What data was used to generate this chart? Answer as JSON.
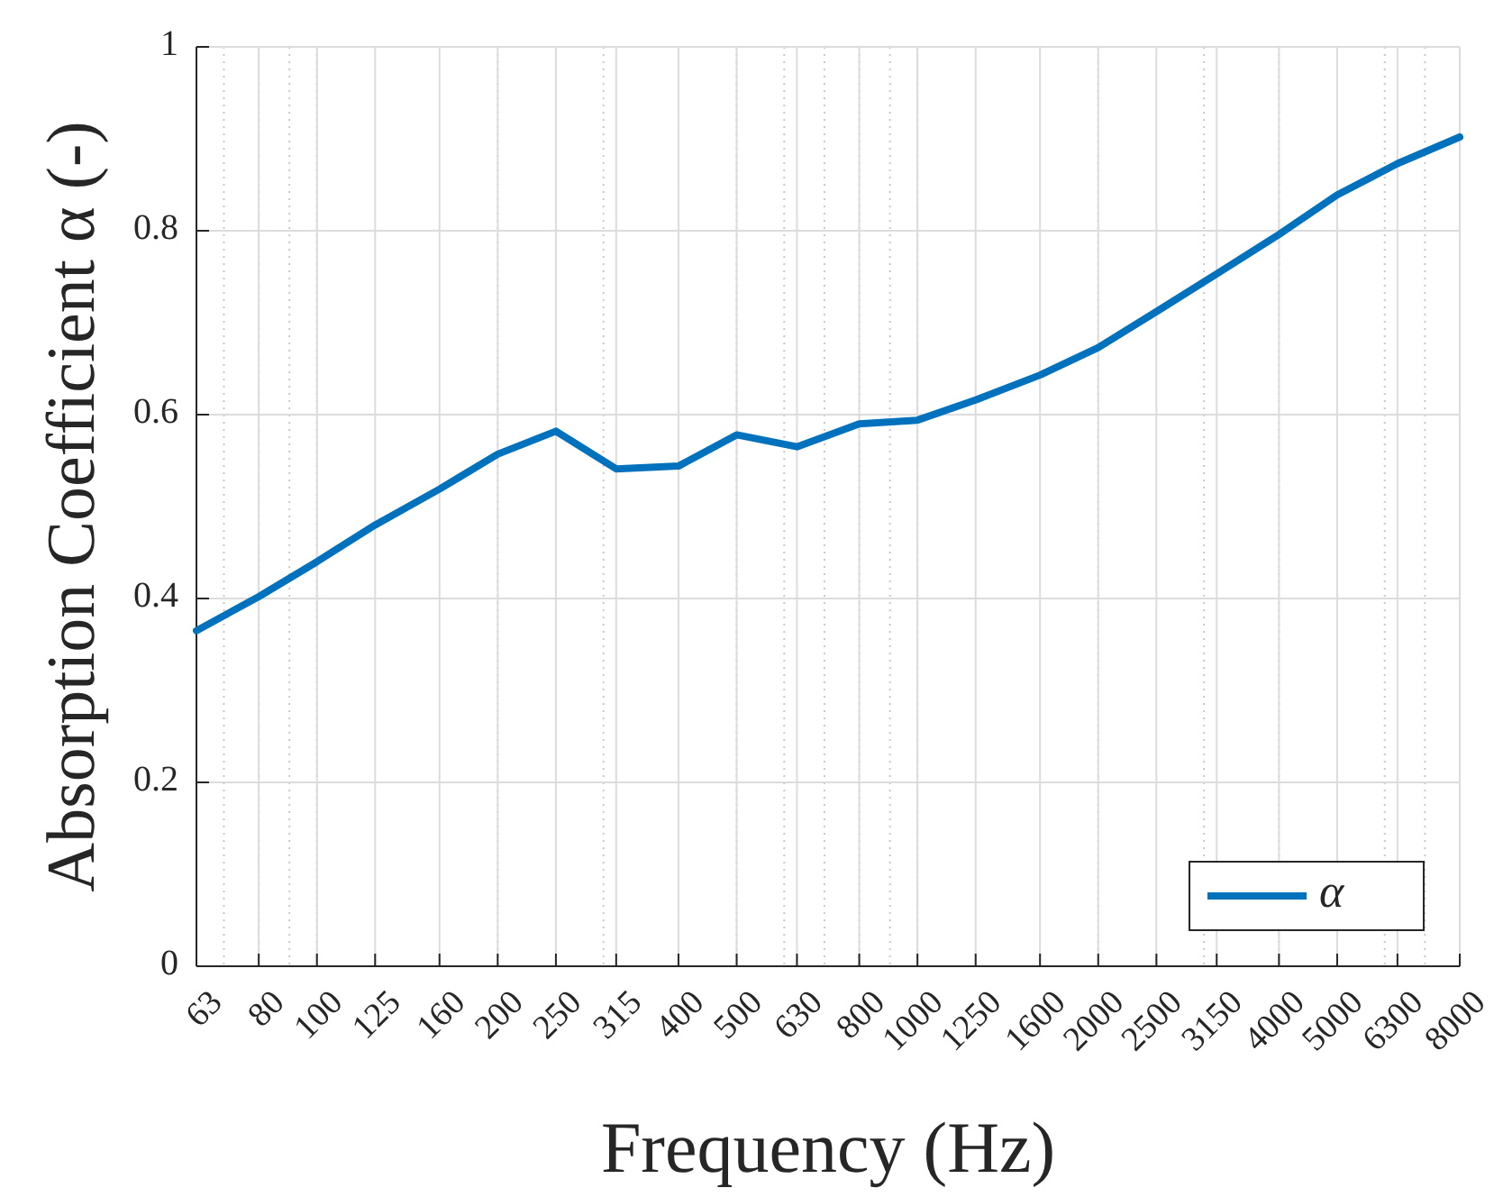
{
  "chart_data": {
    "type": "line",
    "xlabel": "Frequency (Hz)",
    "ylabel": "Absorption Coefficient α (-)",
    "x": [
      63,
      80,
      100,
      125,
      160,
      200,
      250,
      315,
      400,
      500,
      630,
      800,
      1000,
      1250,
      1600,
      2000,
      2500,
      3150,
      4000,
      5000,
      6300,
      8000
    ],
    "series": [
      {
        "name": "α",
        "color": "#0072bd",
        "values": [
          0.365,
          0.402,
          0.44,
          0.48,
          0.519,
          0.557,
          0.582,
          0.541,
          0.544,
          0.578,
          0.565,
          0.59,
          0.594,
          0.616,
          0.643,
          0.673,
          0.712,
          0.753,
          0.796,
          0.839,
          0.873,
          0.902
        ]
      }
    ],
    "xlim": [
      63,
      8000
    ],
    "xticks": [
      63,
      80,
      100,
      125,
      160,
      200,
      250,
      315,
      400,
      500,
      630,
      800,
      1000,
      1250,
      1600,
      2000,
      2500,
      3150,
      4000,
      5000,
      6300,
      8000
    ],
    "ylim": [
      0,
      1
    ],
    "yticks": [
      0,
      0.2,
      0.4,
      0.6,
      0.8,
      1
    ],
    "log": "x",
    "grid": true,
    "legend": "bottom right",
    "marker": "none",
    "line_style": "solid"
  }
}
